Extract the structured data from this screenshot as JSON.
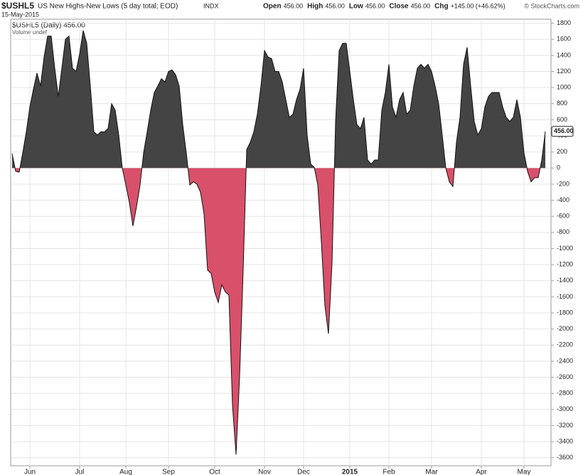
{
  "chart_data": {
    "type": "area",
    "symbol": "$USHL5",
    "title": "US New Highs-New Lows (5 day total; EOD)",
    "exchange": "INDX",
    "date": "15-May-2015",
    "quote": [
      {
        "label": "Open",
        "value": "456.00"
      },
      {
        "label": "High",
        "value": "456.00"
      },
      {
        "label": "Low",
        "value": "456.00"
      },
      {
        "label": "Close",
        "value": "456.00"
      },
      {
        "label": "Chg",
        "value": "+145.00 (+46.62%)"
      }
    ],
    "credit": "© StockCharts.com",
    "legend": [
      "$USHL5 (Daily) 456.00",
      "Volume undef"
    ],
    "last_label": "456.00",
    "positive_color": "#444444",
    "negative_color": "#d9506a",
    "grid": true,
    "xlim": [
      0,
      150
    ],
    "xticks": [
      {
        "value": 5,
        "label": "Jun"
      },
      {
        "value": 19,
        "label": "Jul"
      },
      {
        "value": 32,
        "label": "Aug"
      },
      {
        "value": 44,
        "label": "Sep"
      },
      {
        "value": 57,
        "label": "Oct"
      },
      {
        "value": 71,
        "label": "Nov"
      },
      {
        "value": 82,
        "label": "Dec"
      },
      {
        "value": 95,
        "label": "2015"
      },
      {
        "value": 106,
        "label": "Feb"
      },
      {
        "value": 118,
        "label": "Mar"
      },
      {
        "value": 132,
        "label": "Apr"
      },
      {
        "value": 144,
        "label": "May"
      }
    ],
    "ylim": [
      -3700,
      1850
    ],
    "yticks": [
      1800,
      1600,
      1400,
      1200,
      1000,
      800,
      600,
      400,
      200,
      0,
      -200,
      -400,
      -600,
      -800,
      -1000,
      -1200,
      -1400,
      -1600,
      -1800,
      -2000,
      -2200,
      -2400,
      -2600,
      -2800,
      -3000,
      -3200,
      -3400,
      -3600
    ],
    "values": [
      180,
      -40,
      -50,
      190,
      450,
      760,
      980,
      1180,
      1020,
      1380,
      1640,
      1640,
      1240,
      890,
      1240,
      1600,
      1640,
      1240,
      1200,
      1420,
      1710,
      1550,
      1020,
      450,
      410,
      450,
      450,
      490,
      800,
      720,
      410,
      0,
      -210,
      -430,
      -720,
      -480,
      -210,
      190,
      450,
      720,
      940,
      1020,
      1110,
      1070,
      1200,
      1220,
      1160,
      1020,
      540,
      190,
      -210,
      -170,
      -200,
      -300,
      -570,
      -1270,
      -1310,
      -1540,
      -1670,
      -1450,
      -1540,
      -1580,
      -2950,
      -3560,
      -2590,
      -1270,
      230,
      320,
      450,
      670,
      1020,
      1460,
      1380,
      1360,
      1200,
      1200,
      1070,
      850,
      630,
      670,
      850,
      980,
      1240,
      410,
      50,
      10,
      -210,
      -920,
      -1710,
      -2060,
      -1180,
      580,
      1460,
      1550,
      1550,
      1200,
      850,
      540,
      490,
      630,
      100,
      50,
      100,
      100,
      720,
      940,
      1290,
      760,
      630,
      850,
      940,
      670,
      720,
      1020,
      1240,
      1290,
      1240,
      1290,
      1200,
      1020,
      800,
      410,
      0,
      -170,
      -230,
      320,
      630,
      1290,
      1500,
      1020,
      580,
      410,
      490,
      760,
      890,
      940,
      940,
      940,
      760,
      630,
      580,
      630,
      850,
      630,
      190,
      -40,
      -170,
      -120,
      -120,
      100,
      456
    ]
  }
}
